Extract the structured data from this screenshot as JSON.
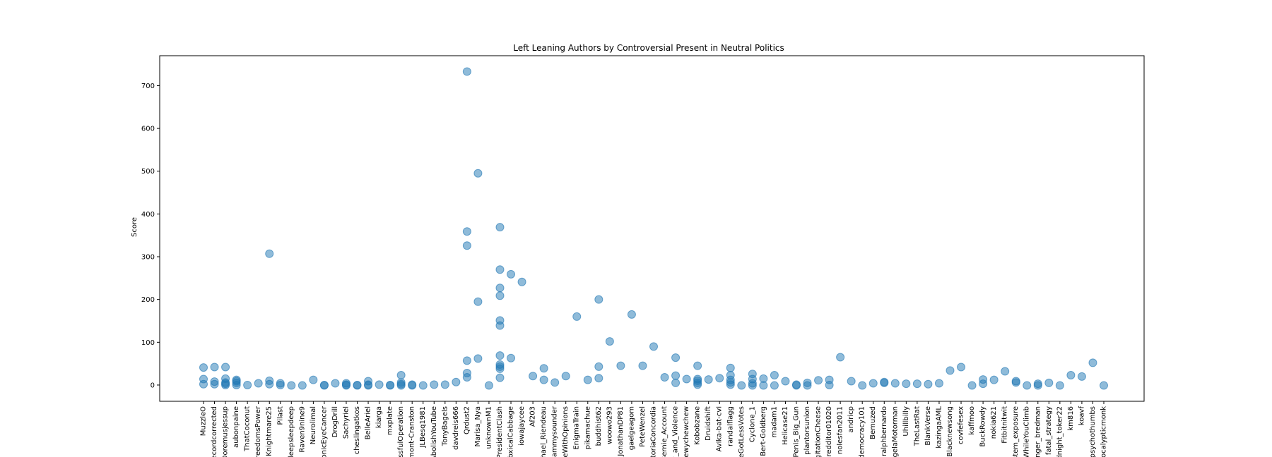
{
  "chart_data": {
    "type": "scatter",
    "title": "Left Leaning Authors by Controversial Present in Neutral Politics",
    "xlabel": "",
    "ylabel": "Score",
    "ylim": [
      -38,
      770
    ],
    "yticks": [
      0,
      100,
      200,
      300,
      400,
      500,
      600,
      700
    ],
    "grid": false,
    "marker_color": "#1f77b4",
    "marker_alpha": 0.5,
    "categories": [
      "MuzzleO",
      "recordcorrected",
      "Doremusjessup",
      "aubonpaine",
      "ThatCoconut",
      "FreedomsPower",
      "Knightmare25",
      "Pilast",
      "sleepsleepdeep",
      "Raven9nine9",
      "Neurolimal",
      "SonicEyeCancer",
      "DrogDrill",
      "Sachyriel",
      "cheslingatkos",
      "BelleAriel",
      "kiarga",
      "mxplate",
      "SuccessfulOperation",
      "Lamont-Cranston",
      "JLBesq1981",
      "AbolishYouTube",
      "TonyBagels",
      "davdreis666",
      "Qrdust2",
      "Marisa_Nya",
      "unknownM1",
      "PresidentClash",
      "ToxicalCabbage",
      "iowajaycee",
      "Af203",
      "Michael_Riendeau",
      "Sammysounder",
      "TheWithOpinions",
      "EnigmaTrain",
      "pikamachue",
      "buddhist62",
      "woowo293",
      "JonathanDP81",
      "gaelgeagom",
      "PeteWenzel",
      "VictoriaConcordia",
      "Bernie_Account",
      "Law_and_Violence",
      "Chewychewchew",
      "Kobobzane",
      "Druidshift",
      "Avika-bat-cvi",
      "randalflagg",
      "WeGotLessVotes",
      "Cyclone_1",
      "Bert-Goldberg",
      "madam1",
      "Helicase21",
      "Penis_Big_Gun",
      "plantorsunion",
      "DigitationCheese",
      "redditor01020",
      "nolesfan2011",
      "andricp",
      "democracy101",
      "Bemuzed",
      "ralphbernardo",
      "AngelaMotorman",
      "Uhillbilly",
      "TheLastRat",
      "BlankVerse",
      "kazingaAML",
      "Blacknewsong",
      "covfefesex",
      "kaffmoo",
      "BuckRowdy",
      "nokia621",
      "Fitbitnitwit",
      "system_exposure",
      "WhileYouClimb",
      "Singer_bredman",
      "fatal_strategy",
      "Midnight_toker22",
      "km816",
      "koavf",
      "psychothumbs",
      "Apocalypticmonk"
    ],
    "points": [
      {
        "x": "MuzzleO",
        "y": [
          2,
          14,
          41
        ]
      },
      {
        "x": "recordcorrected",
        "y": [
          2,
          8,
          42
        ]
      },
      {
        "x": "Doremusjessup",
        "y": [
          0,
          3,
          6,
          15,
          42
        ]
      },
      {
        "x": "aubonpaine",
        "y": [
          0,
          5,
          9,
          12
        ]
      },
      {
        "x": "ThatCoconut",
        "y": [
          0
        ]
      },
      {
        "x": "FreedomsPower",
        "y": [
          4
        ]
      },
      {
        "x": "Knightmare25",
        "y": [
          2,
          10,
          307
        ]
      },
      {
        "x": "Pilast",
        "y": [
          0,
          4
        ]
      },
      {
        "x": "sleepsleepdeep",
        "y": [
          -1
        ]
      },
      {
        "x": "Raven9nine9",
        "y": [
          -1
        ]
      },
      {
        "x": "Neurolimal",
        "y": [
          12
        ]
      },
      {
        "x": "SonicEyeCancer",
        "y": [
          -1,
          0
        ]
      },
      {
        "x": "DrogDrill",
        "y": [
          4
        ]
      },
      {
        "x": "Sachyriel",
        "y": [
          -1,
          1,
          4
        ]
      },
      {
        "x": "cheslingatkos",
        "y": [
          -1,
          0
        ]
      },
      {
        "x": "BelleAriel",
        "y": [
          -1,
          1,
          9
        ]
      },
      {
        "x": "kiarga",
        "y": [
          1
        ]
      },
      {
        "x": "mxplate",
        "y": [
          -1,
          0
        ]
      },
      {
        "x": "SuccessfulOperation",
        "y": [
          -1,
          2,
          6,
          23
        ]
      },
      {
        "x": "Lamont-Cranston",
        "y": [
          -1,
          1
        ]
      },
      {
        "x": "JLBesq1981",
        "y": [
          -1
        ]
      },
      {
        "x": "AbolishYouTube",
        "y": [
          1
        ]
      },
      {
        "x": "TonyBagels",
        "y": [
          1
        ]
      },
      {
        "x": "davdreis666",
        "y": [
          7
        ]
      },
      {
        "x": "Qrdust2",
        "y": [
          18,
          28,
          57,
          326,
          359,
          733
        ]
      },
      {
        "x": "Marisa_Nya",
        "y": [
          62,
          195,
          495
        ]
      },
      {
        "x": "unknownM1",
        "y": [
          -1
        ]
      },
      {
        "x": "PresidentClash",
        "y": [
          17,
          38,
          43,
          48,
          69,
          139,
          151,
          209,
          227,
          270,
          369
        ]
      },
      {
        "x": "ToxicalCabbage",
        "y": [
          63,
          259
        ]
      },
      {
        "x": "iowajaycee",
        "y": [
          241
        ]
      },
      {
        "x": "Af203",
        "y": [
          21
        ]
      },
      {
        "x": "Michael_Riendeau",
        "y": [
          12,
          39
        ]
      },
      {
        "x": "Sammysounder",
        "y": [
          6
        ]
      },
      {
        "x": "TheWithOpinions",
        "y": [
          21
        ]
      },
      {
        "x": "EnigmaTrain",
        "y": [
          160
        ]
      },
      {
        "x": "pikamachue",
        "y": [
          12
        ]
      },
      {
        "x": "buddhist62",
        "y": [
          16,
          43,
          200
        ]
      },
      {
        "x": "woowo293",
        "y": [
          102
        ]
      },
      {
        "x": "JonathanDP81",
        "y": [
          45
        ]
      },
      {
        "x": "gaelgeagom",
        "y": [
          165
        ]
      },
      {
        "x": "PeteWenzel",
        "y": [
          45
        ]
      },
      {
        "x": "VictoriaConcordia",
        "y": [
          90
        ]
      },
      {
        "x": "Bernie_Account",
        "y": [
          18
        ]
      },
      {
        "x": "Law_and_Violence",
        "y": [
          5,
          22,
          64
        ]
      },
      {
        "x": "Chewychewchew",
        "y": [
          14
        ]
      },
      {
        "x": "Kobobzane",
        "y": [
          1,
          5,
          10,
          14,
          45
        ]
      },
      {
        "x": "Druidshift",
        "y": [
          13
        ]
      },
      {
        "x": "Avika-bat-cvi",
        "y": [
          16
        ]
      },
      {
        "x": "randalflagg",
        "y": [
          1,
          6,
          12,
          23,
          40
        ]
      },
      {
        "x": "WeGotLessVotes",
        "y": [
          -1
        ]
      },
      {
        "x": "Cyclone_1",
        "y": [
          -1,
          4,
          14,
          26
        ]
      },
      {
        "x": "Bert-Goldberg",
        "y": [
          -1,
          15
        ]
      },
      {
        "x": "madam1",
        "y": [
          -1,
          23
        ]
      },
      {
        "x": "Helicase21",
        "y": [
          9
        ]
      },
      {
        "x": "Penis_Big_Gun",
        "y": [
          -1,
          1
        ]
      },
      {
        "x": "plantorsunion",
        "y": [
          -1,
          5
        ]
      },
      {
        "x": "DigitationCheese",
        "y": [
          11
        ]
      },
      {
        "x": "redditor01020",
        "y": [
          0,
          12
        ]
      },
      {
        "x": "nolesfan2011",
        "y": [
          65
        ]
      },
      {
        "x": "andricp",
        "y": [
          9
        ]
      },
      {
        "x": "democracy101",
        "y": [
          -1
        ]
      },
      {
        "x": "Bemuzed",
        "y": [
          4
        ]
      },
      {
        "x": "ralphbernardo",
        "y": [
          5,
          7
        ]
      },
      {
        "x": "AngelaMotorman",
        "y": [
          4
        ]
      },
      {
        "x": "Uhillbilly",
        "y": [
          3
        ]
      },
      {
        "x": "TheLastRat",
        "y": [
          3
        ]
      },
      {
        "x": "BlankVerse",
        "y": [
          2
        ]
      },
      {
        "x": "kazingaAML",
        "y": [
          4
        ]
      },
      {
        "x": "Blacknewsong",
        "y": [
          34
        ]
      },
      {
        "x": "covfefesex",
        "y": [
          42
        ]
      },
      {
        "x": "kaffmoo",
        "y": [
          -1
        ]
      },
      {
        "x": "BuckRowdy",
        "y": [
          3,
          13
        ]
      },
      {
        "x": "nokia621",
        "y": [
          12
        ]
      },
      {
        "x": "Fitbitnitwit",
        "y": [
          32
        ]
      },
      {
        "x": "system_exposure",
        "y": [
          6,
          9
        ]
      },
      {
        "x": "WhileYouClimb",
        "y": [
          -1
        ]
      },
      {
        "x": "Singer_bredman",
        "y": [
          -1,
          3
        ]
      },
      {
        "x": "fatal_strategy",
        "y": [
          5
        ]
      },
      {
        "x": "Midnight_toker22",
        "y": [
          -1
        ]
      },
      {
        "x": "km816",
        "y": [
          23
        ]
      },
      {
        "x": "koavf",
        "y": [
          20
        ]
      },
      {
        "x": "psychothumbs",
        "y": [
          52
        ]
      },
      {
        "x": "Apocalypticmonk",
        "y": [
          -1
        ]
      }
    ]
  }
}
